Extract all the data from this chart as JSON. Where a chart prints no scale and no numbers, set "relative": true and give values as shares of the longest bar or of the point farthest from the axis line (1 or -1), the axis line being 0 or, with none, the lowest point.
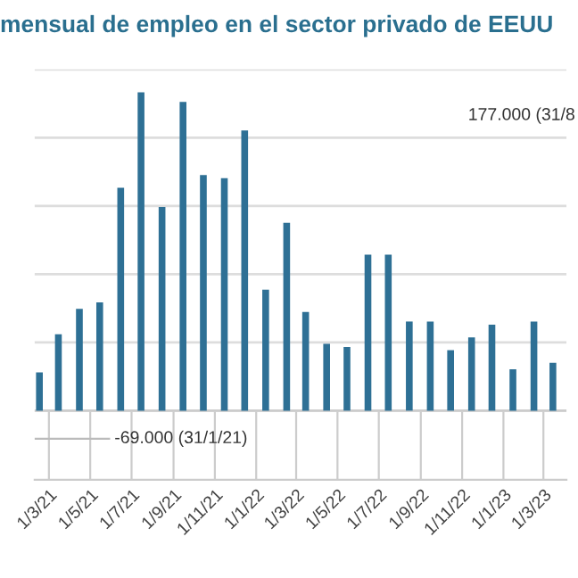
{
  "chart_data": {
    "type": "bar",
    "title": "mensual de empleo en el sector privado de EEUU",
    "x": [
      "2021-02-15",
      "2021-03-15",
      "2021-04-15",
      "2021-05-15",
      "2021-06-15",
      "2021-07-15",
      "2021-08-15",
      "2021-09-15",
      "2021-10-15",
      "2021-11-15",
      "2021-12-15",
      "2022-01-15",
      "2022-02-15",
      "2022-03-15",
      "2022-04-15",
      "2022-05-15",
      "2022-06-15",
      "2022-07-15",
      "2022-08-15",
      "2022-09-15",
      "2022-10-15",
      "2022-11-15",
      "2022-12-15",
      "2023-01-15",
      "2023-02-15",
      "2023-03-15"
    ],
    "values": [
      0.12,
      0.24,
      0.32,
      0.34,
      0.7,
      1.0,
      0.64,
      0.97,
      0.74,
      0.73,
      0.88,
      0.38,
      0.59,
      0.31,
      0.21,
      0.2,
      0.49,
      0.49,
      0.28,
      0.28,
      0.19,
      0.23,
      0.27,
      0.13,
      0.28,
      0.15
    ],
    "color": "#2e7095",
    "relative": true,
    "xlim": [
      "2021-02-08",
      "2023-04-04"
    ],
    "xticks": [
      {
        "value": "2021-03-01",
        "label": "1/3/21"
      },
      {
        "value": "2021-05-01",
        "label": "1/5/21"
      },
      {
        "value": "2021-07-01",
        "label": "1/7/21"
      },
      {
        "value": "2021-09-01",
        "label": "1/9/21"
      },
      {
        "value": "2021-11-01",
        "label": "1/11/21"
      },
      {
        "value": "2022-01-01",
        "label": "1/1/22"
      },
      {
        "value": "2022-03-01",
        "label": "1/3/22"
      },
      {
        "value": "2022-05-01",
        "label": "1/5/22"
      },
      {
        "value": "2022-07-01",
        "label": "1/7/22"
      },
      {
        "value": "2022-09-01",
        "label": "1/9/22"
      },
      {
        "value": "2022-11-01",
        "label": "1/11/22"
      },
      {
        "value": "2023-01-01",
        "label": "1/1/23"
      },
      {
        "value": "2023-03-01",
        "label": "1/3/23"
      }
    ],
    "grid": "y",
    "annotations": [
      "177.000 (31/8",
      "-69.000 (31/1/21)"
    ]
  }
}
